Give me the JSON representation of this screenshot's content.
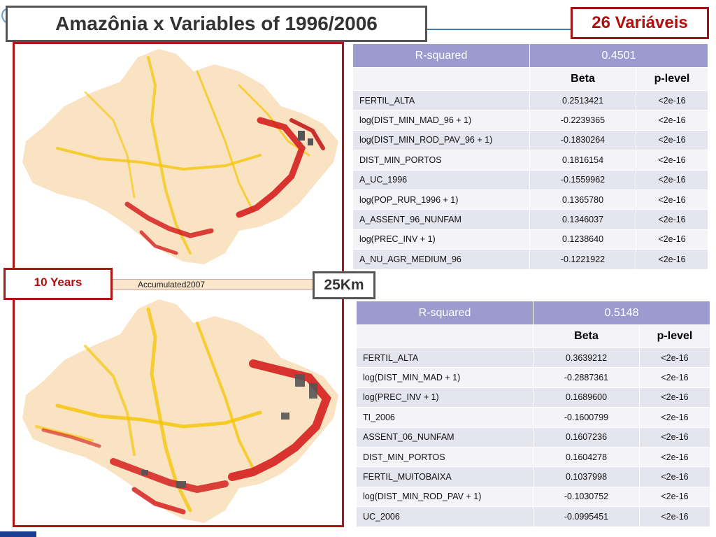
{
  "header": {
    "title": "Amazônia x Variables of 1996/2006",
    "variables_label": "26 Variáveis"
  },
  "maps": {
    "years_label": "10 Years",
    "accumulated_label": "Accumulated2007",
    "scale_label": "25Km"
  },
  "table1": {
    "rsquared_label": "R-squared",
    "rsquared_value": "0.4501",
    "beta_header": "Beta",
    "plevel_header": "p-level",
    "rows": [
      {
        "name": "FERTIL_ALTA",
        "beta": "0.2513421",
        "p": "<2e-16"
      },
      {
        "name": "log(DIST_MIN_MAD_96 + 1)",
        "beta": "-0.2239365",
        "p": "<2e-16"
      },
      {
        "name": "log(DIST_MIN_ROD_PAV_96 + 1)",
        "beta": "-0.1830264",
        "p": "<2e-16"
      },
      {
        "name": "DIST_MIN_PORTOS",
        "beta": "0.1816154",
        "p": "<2e-16"
      },
      {
        "name": "A_UC_1996",
        "beta": "-0.1559962",
        "p": "<2e-16"
      },
      {
        "name": "log(POP_RUR_1996 + 1)",
        "beta": "0.1365780",
        "p": "<2e-16"
      },
      {
        "name": "A_ASSENT_96_NUNFAM",
        "beta": "0.1346037",
        "p": "<2e-16"
      },
      {
        "name": "log(PREC_INV + 1)",
        "beta": "0.1238640",
        "p": "<2e-16"
      },
      {
        "name": "A_NU_AGR_MEDIUM_96",
        "beta": "-0.1221922",
        "p": "<2e-16"
      }
    ]
  },
  "table2": {
    "rsquared_label": "R-squared",
    "rsquared_value": "0.5148",
    "beta_header": "Beta",
    "plevel_header": "p-level",
    "rows": [
      {
        "name": " FERTIL_ALTA",
        "beta": "0.3639212",
        "p": "<2e-16"
      },
      {
        "name": "log(DIST_MIN_MAD + 1)",
        "beta": "-0.2887361",
        "p": "<2e-16"
      },
      {
        "name": "log(PREC_INV + 1)",
        "beta": "0.1689600",
        "p": "<2e-16"
      },
      {
        "name": "TI_2006",
        "beta": "-0.1600799",
        "p": "<2e-16"
      },
      {
        "name": "ASSENT_06_NUNFAM",
        "beta": "0.1607236",
        "p": "<2e-16"
      },
      {
        "name": "DIST_MIN_PORTOS",
        "beta": "0.1604278",
        "p": "<2e-16"
      },
      {
        "name": "FERTIL_MUITOBAIXA",
        "beta": "0.1037998",
        "p": "<2e-16"
      },
      {
        "name": "log(DIST_MIN_ROD_PAV + 1)",
        "beta": "-0.1030752",
        "p": "<2e-16"
      },
      {
        "name": "UC_2006",
        "beta": "-0.0995451",
        "p": "<2e-16"
      }
    ]
  },
  "colors": {
    "accent_red": "#b01010",
    "table_header": "#9b9bcf",
    "row_band_dark": "#e5e5ef",
    "row_band_light": "#f3f3f8",
    "map_base": "#f9e3c3",
    "map_yellow": "#f5c400",
    "map_red": "#d21414",
    "map_gray": "#555555"
  }
}
